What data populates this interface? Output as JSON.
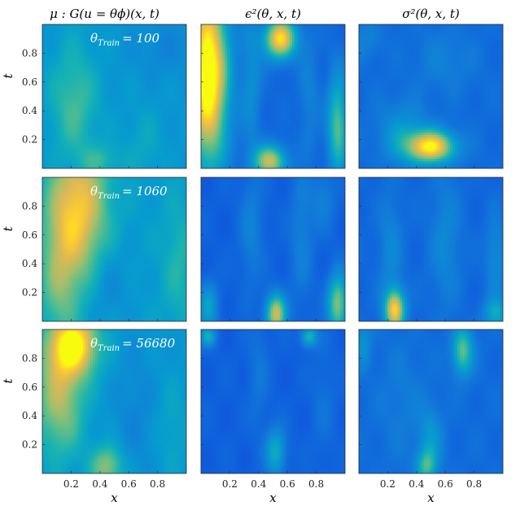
{
  "chart_data": {
    "type": "heatmap",
    "layout": "3x3 grid of heatmaps",
    "colormap": "parula",
    "grid": false,
    "column_titles": [
      "μ : G(u = θϕ)(x, t)",
      "ϵ²(θ, x, t)",
      "σ²(θ, x, t)"
    ],
    "row_annotations": [
      {
        "symbol": "θ",
        "subscript": "Train",
        "value": "= 100"
      },
      {
        "symbol": "θ",
        "subscript": "Train",
        "value": "= 1060"
      },
      {
        "symbol": "θ",
        "subscript": "Train",
        "value": "= 56680"
      }
    ],
    "xlabel": "x",
    "ylabel": "t",
    "x_ticks": [
      "0.2",
      "0.4",
      "0.6",
      "0.8"
    ],
    "y_ticks": [
      "0.8",
      "0.6",
      "0.4",
      "0.2"
    ],
    "xlim": [
      0,
      1
    ],
    "ylim": [
      0,
      1
    ],
    "panels": [
      {
        "row": 0,
        "col": 0,
        "base": 0.42,
        "blobs": [
          {
            "x": 0.22,
            "t": 0.45,
            "sx": 0.12,
            "st": 0.3,
            "a": 0.2
          },
          {
            "x": 0.4,
            "t": 0.05,
            "sx": 0.1,
            "st": 0.08,
            "a": 0.15
          },
          {
            "x": 0.7,
            "t": 0.15,
            "sx": 0.1,
            "st": 0.2,
            "a": 0.08
          },
          {
            "x": 0.85,
            "t": 0.85,
            "sx": 0.15,
            "st": 0.15,
            "a": -0.08
          }
        ]
      },
      {
        "row": 0,
        "col": 1,
        "base": 0.2,
        "blobs": [
          {
            "x": 0.05,
            "t": 0.65,
            "sx": 0.1,
            "st": 0.45,
            "a": 0.9
          },
          {
            "x": 0.55,
            "t": 0.9,
            "sx": 0.08,
            "st": 0.1,
            "a": 0.75
          },
          {
            "x": 0.48,
            "t": 0.05,
            "sx": 0.08,
            "st": 0.08,
            "a": 0.6
          },
          {
            "x": 0.95,
            "t": 0.3,
            "sx": 0.05,
            "st": 0.25,
            "a": 0.45
          },
          {
            "x": 0.35,
            "t": 0.6,
            "sx": 0.05,
            "st": 0.35,
            "a": 0.18
          },
          {
            "x": 0.75,
            "t": 0.5,
            "sx": 0.05,
            "st": 0.3,
            "a": 0.12
          }
        ]
      },
      {
        "row": 0,
        "col": 2,
        "base": 0.22,
        "blobs": [
          {
            "x": 0.5,
            "t": 0.15,
            "sx": 0.12,
            "st": 0.08,
            "a": 0.75
          },
          {
            "x": 0.3,
            "t": 0.25,
            "sx": 0.12,
            "st": 0.15,
            "a": 0.2
          },
          {
            "x": 0.6,
            "t": 0.75,
            "sx": 0.15,
            "st": 0.15,
            "a": 0.1
          },
          {
            "x": 0.05,
            "t": 0.9,
            "sx": 0.08,
            "st": 0.1,
            "a": 0.1
          }
        ]
      },
      {
        "row": 1,
        "col": 0,
        "base": 0.45,
        "blobs": [
          {
            "x": 0.25,
            "t": 0.78,
            "sx": 0.14,
            "st": 0.35,
            "a": 0.45
          },
          {
            "x": 0.12,
            "t": 0.3,
            "sx": 0.1,
            "st": 0.35,
            "a": 0.2
          },
          {
            "x": 0.45,
            "t": 0.25,
            "sx": 0.12,
            "st": 0.2,
            "a": -0.1
          },
          {
            "x": 0.95,
            "t": 0.4,
            "sx": 0.08,
            "st": 0.3,
            "a": 0.12
          }
        ]
      },
      {
        "row": 1,
        "col": 1,
        "base": 0.17,
        "blobs": [
          {
            "x": 0.52,
            "t": 0.05,
            "sx": 0.05,
            "st": 0.1,
            "a": 0.65
          },
          {
            "x": 0.95,
            "t": 0.12,
            "sx": 0.05,
            "st": 0.15,
            "a": 0.55
          },
          {
            "x": 0.05,
            "t": 0.1,
            "sx": 0.05,
            "st": 0.12,
            "a": 0.3
          },
          {
            "x": 0.35,
            "t": 0.65,
            "sx": 0.06,
            "st": 0.3,
            "a": 0.15
          },
          {
            "x": 0.7,
            "t": 0.6,
            "sx": 0.06,
            "st": 0.35,
            "a": 0.15
          },
          {
            "x": 0.85,
            "t": 0.85,
            "sx": 0.06,
            "st": 0.15,
            "a": 0.15
          }
        ]
      },
      {
        "row": 1,
        "col": 2,
        "base": 0.2,
        "blobs": [
          {
            "x": 0.25,
            "t": 0.08,
            "sx": 0.05,
            "st": 0.1,
            "a": 0.7
          },
          {
            "x": 0.95,
            "t": 0.05,
            "sx": 0.06,
            "st": 0.08,
            "a": 0.3
          },
          {
            "x": 0.22,
            "t": 0.5,
            "sx": 0.06,
            "st": 0.3,
            "a": 0.15
          },
          {
            "x": 0.6,
            "t": 0.55,
            "sx": 0.08,
            "st": 0.35,
            "a": 0.15
          },
          {
            "x": 0.95,
            "t": 0.45,
            "sx": 0.05,
            "st": 0.2,
            "a": 0.18
          }
        ]
      },
      {
        "row": 2,
        "col": 0,
        "base": 0.42,
        "blobs": [
          {
            "x": 0.22,
            "t": 0.9,
            "sx": 0.12,
            "st": 0.15,
            "a": 0.55
          },
          {
            "x": 0.12,
            "t": 0.55,
            "sx": 0.12,
            "st": 0.3,
            "a": 0.35
          },
          {
            "x": 0.45,
            "t": 0.05,
            "sx": 0.08,
            "st": 0.1,
            "a": 0.3
          },
          {
            "x": 0.65,
            "t": 0.4,
            "sx": 0.1,
            "st": 0.3,
            "a": -0.08
          },
          {
            "x": 0.9,
            "t": 0.3,
            "sx": 0.08,
            "st": 0.25,
            "a": 0.08
          }
        ]
      },
      {
        "row": 2,
        "col": 1,
        "base": 0.17,
        "blobs": [
          {
            "x": 0.52,
            "t": 0.15,
            "sx": 0.05,
            "st": 0.12,
            "a": 0.35
          },
          {
            "x": 0.75,
            "t": 0.95,
            "sx": 0.04,
            "st": 0.05,
            "a": 0.4
          },
          {
            "x": 0.05,
            "t": 0.95,
            "sx": 0.04,
            "st": 0.05,
            "a": 0.35
          },
          {
            "x": 0.4,
            "t": 0.7,
            "sx": 0.05,
            "st": 0.3,
            "a": 0.1
          },
          {
            "x": 0.85,
            "t": 0.5,
            "sx": 0.06,
            "st": 0.3,
            "a": 0.08
          }
        ]
      },
      {
        "row": 2,
        "col": 2,
        "base": 0.22,
        "blobs": [
          {
            "x": 0.72,
            "t": 0.85,
            "sx": 0.05,
            "st": 0.12,
            "a": 0.45
          },
          {
            "x": 0.47,
            "t": 0.05,
            "sx": 0.05,
            "st": 0.08,
            "a": 0.35
          },
          {
            "x": 0.5,
            "t": 0.25,
            "sx": 0.06,
            "st": 0.15,
            "a": 0.2
          },
          {
            "x": 0.03,
            "t": 0.9,
            "sx": 0.04,
            "st": 0.12,
            "a": 0.18
          },
          {
            "x": 0.3,
            "t": 0.5,
            "sx": 0.12,
            "st": 0.3,
            "a": 0.08
          }
        ]
      }
    ]
  },
  "colors": {
    "parula_low": "#352a87",
    "parula_mid_blue": "#2f8bdf",
    "parula_teal": "#2cb9a7",
    "parula_orange": "#f7ba3d",
    "parula_high": "#f9fb0e"
  }
}
